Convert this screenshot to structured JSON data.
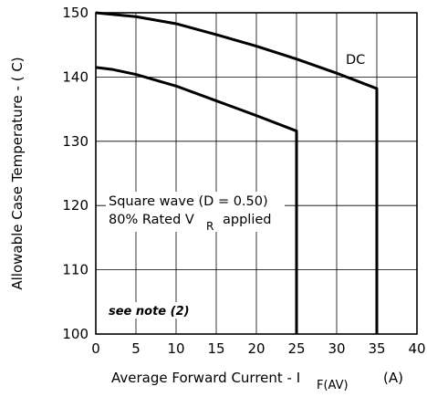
{
  "chart_data": {
    "type": "line",
    "xlabel_main": "Average Forward Current - I",
    "xlabel_sub": "F(AV)",
    "xlabel_unit": "(A)",
    "ylabel": "Allowable Case Temperature - ( C)",
    "xlim": [
      0,
      40
    ],
    "ylim": [
      100,
      150
    ],
    "x_ticks": [
      0,
      5,
      10,
      15,
      20,
      25,
      30,
      35,
      40
    ],
    "y_ticks": [
      100,
      110,
      120,
      130,
      140,
      150
    ],
    "grid": true,
    "series": [
      {
        "name": "DC",
        "x": [
          0,
          5,
          10,
          15,
          20,
          25,
          30,
          35,
          35
        ],
        "y": [
          150,
          149.4,
          148.3,
          146.6,
          144.8,
          142.8,
          140.6,
          138.2,
          100
        ]
      },
      {
        "name": "Square wave (D = 0.50)",
        "x": [
          0,
          2,
          5,
          10,
          15,
          20,
          25,
          25
        ],
        "y": [
          141.5,
          141.2,
          140.4,
          138.6,
          136.3,
          134.0,
          131.6,
          100
        ]
      }
    ],
    "annotations": {
      "dc_label": "DC",
      "square_line1": "Square wave (D = 0.50)",
      "square_line2_main": "80% Rated V",
      "square_line2_sub": "R",
      "square_line2_tail": "applied",
      "note": "see note (2)"
    }
  }
}
